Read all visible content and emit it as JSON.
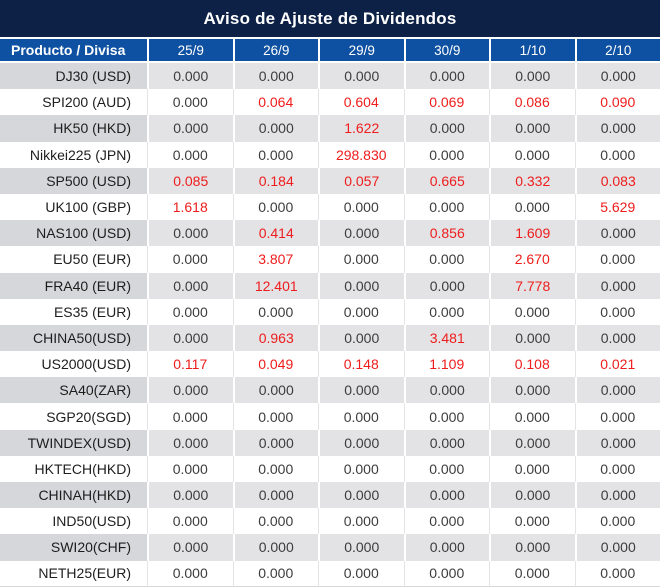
{
  "title": "Aviso de Ajuste de Dividendos",
  "table": {
    "product_header": "Producto / Divisa",
    "date_headers": [
      "25/9",
      "26/9",
      "29/9",
      "30/9",
      "1/10",
      "2/10"
    ],
    "zero_value": "0.000",
    "rows": [
      {
        "product": "DJ30 (USD)",
        "values": [
          "0.000",
          "0.000",
          "0.000",
          "0.000",
          "0.000",
          "0.000"
        ]
      },
      {
        "product": "SPI200 (AUD)",
        "values": [
          "0.000",
          "0.064",
          "0.604",
          "0.069",
          "0.086",
          "0.090"
        ]
      },
      {
        "product": "HK50 (HKD)",
        "values": [
          "0.000",
          "0.000",
          "1.622",
          "0.000",
          "0.000",
          "0.000"
        ]
      },
      {
        "product": "Nikkei225 (JPN)",
        "values": [
          "0.000",
          "0.000",
          "298.830",
          "0.000",
          "0.000",
          "0.000"
        ]
      },
      {
        "product": "SP500 (USD)",
        "values": [
          "0.085",
          "0.184",
          "0.057",
          "0.665",
          "0.332",
          "0.083"
        ]
      },
      {
        "product": "UK100 (GBP)",
        "values": [
          "1.618",
          "0.000",
          "0.000",
          "0.000",
          "0.000",
          "5.629"
        ]
      },
      {
        "product": "NAS100 (USD)",
        "values": [
          "0.000",
          "0.414",
          "0.000",
          "0.856",
          "1.609",
          "0.000"
        ]
      },
      {
        "product": "EU50 (EUR)",
        "values": [
          "0.000",
          "3.807",
          "0.000",
          "0.000",
          "2.670",
          "0.000"
        ]
      },
      {
        "product": "FRA40 (EUR)",
        "values": [
          "0.000",
          "12.401",
          "0.000",
          "0.000",
          "7.778",
          "0.000"
        ]
      },
      {
        "product": "ES35 (EUR)",
        "values": [
          "0.000",
          "0.000",
          "0.000",
          "0.000",
          "0.000",
          "0.000"
        ]
      },
      {
        "product": "CHINA50(USD)",
        "values": [
          "0.000",
          "0.963",
          "0.000",
          "3.481",
          "0.000",
          "0.000"
        ]
      },
      {
        "product": "US2000(USD)",
        "values": [
          "0.117",
          "0.049",
          "0.148",
          "1.109",
          "0.108",
          "0.021"
        ]
      },
      {
        "product": "SA40(ZAR)",
        "values": [
          "0.000",
          "0.000",
          "0.000",
          "0.000",
          "0.000",
          "0.000"
        ]
      },
      {
        "product": "SGP20(SGD)",
        "values": [
          "0.000",
          "0.000",
          "0.000",
          "0.000",
          "0.000",
          "0.000"
        ]
      },
      {
        "product": "TWINDEX(USD)",
        "values": [
          "0.000",
          "0.000",
          "0.000",
          "0.000",
          "0.000",
          "0.000"
        ]
      },
      {
        "product": "HKTECH(HKD)",
        "values": [
          "0.000",
          "0.000",
          "0.000",
          "0.000",
          "0.000",
          "0.000"
        ]
      },
      {
        "product": "CHINAH(HKD)",
        "values": [
          "0.000",
          "0.000",
          "0.000",
          "0.000",
          "0.000",
          "0.000"
        ]
      },
      {
        "product": "IND50(USD)",
        "values": [
          "0.000",
          "0.000",
          "0.000",
          "0.000",
          "0.000",
          "0.000"
        ]
      },
      {
        "product": "SWI20(CHF)",
        "values": [
          "0.000",
          "0.000",
          "0.000",
          "0.000",
          "0.000",
          "0.000"
        ]
      },
      {
        "product": "NETH25(EUR)",
        "values": [
          "0.000",
          "0.000",
          "0.000",
          "0.000",
          "0.000",
          "0.000"
        ]
      }
    ]
  },
  "colors": {
    "title_bar_bg": "#0c2145",
    "header_bg": "#0e50a1",
    "row_alt_bg": "#e3e3e5",
    "row_alt_product_bg": "#d6d7da",
    "value_color": "#3c3c3c",
    "product_color": "#1d1d1d",
    "highlight_value_color": "#ee1c1c"
  }
}
